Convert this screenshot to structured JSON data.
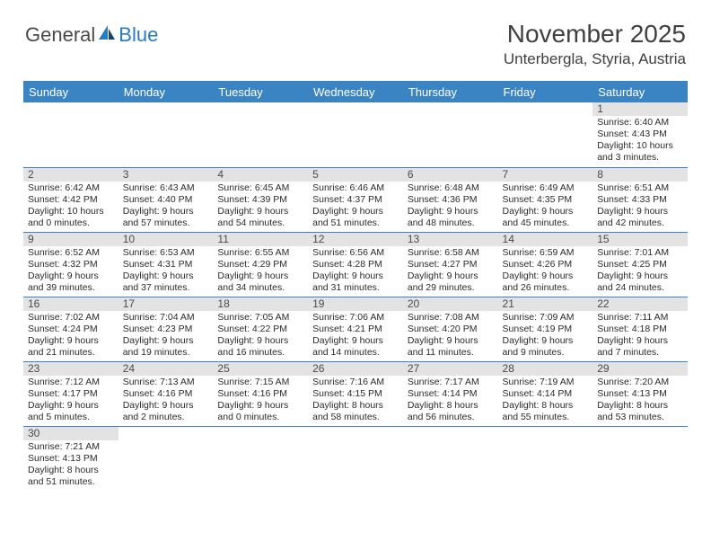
{
  "logo": {
    "part1": "General",
    "part2": "Blue"
  },
  "title": "November 2025",
  "location": "Unterbergla, Styria, Austria",
  "colors": {
    "header_bg": "#3b84c4",
    "header_text": "#ffffff",
    "daynum_bg": "#e3e3e3",
    "row_divider": "#3b84c4",
    "logo_gray": "#4a4a4a",
    "logo_blue": "#2a7abf"
  },
  "day_labels": [
    "Sunday",
    "Monday",
    "Tuesday",
    "Wednesday",
    "Thursday",
    "Friday",
    "Saturday"
  ],
  "weeks": [
    [
      null,
      null,
      null,
      null,
      null,
      null,
      {
        "n": "1",
        "sunrise": "Sunrise: 6:40 AM",
        "sunset": "Sunset: 4:43 PM",
        "day1": "Daylight: 10 hours",
        "day2": "and 3 minutes."
      }
    ],
    [
      {
        "n": "2",
        "sunrise": "Sunrise: 6:42 AM",
        "sunset": "Sunset: 4:42 PM",
        "day1": "Daylight: 10 hours",
        "day2": "and 0 minutes."
      },
      {
        "n": "3",
        "sunrise": "Sunrise: 6:43 AM",
        "sunset": "Sunset: 4:40 PM",
        "day1": "Daylight: 9 hours",
        "day2": "and 57 minutes."
      },
      {
        "n": "4",
        "sunrise": "Sunrise: 6:45 AM",
        "sunset": "Sunset: 4:39 PM",
        "day1": "Daylight: 9 hours",
        "day2": "and 54 minutes."
      },
      {
        "n": "5",
        "sunrise": "Sunrise: 6:46 AM",
        "sunset": "Sunset: 4:37 PM",
        "day1": "Daylight: 9 hours",
        "day2": "and 51 minutes."
      },
      {
        "n": "6",
        "sunrise": "Sunrise: 6:48 AM",
        "sunset": "Sunset: 4:36 PM",
        "day1": "Daylight: 9 hours",
        "day2": "and 48 minutes."
      },
      {
        "n": "7",
        "sunrise": "Sunrise: 6:49 AM",
        "sunset": "Sunset: 4:35 PM",
        "day1": "Daylight: 9 hours",
        "day2": "and 45 minutes."
      },
      {
        "n": "8",
        "sunrise": "Sunrise: 6:51 AM",
        "sunset": "Sunset: 4:33 PM",
        "day1": "Daylight: 9 hours",
        "day2": "and 42 minutes."
      }
    ],
    [
      {
        "n": "9",
        "sunrise": "Sunrise: 6:52 AM",
        "sunset": "Sunset: 4:32 PM",
        "day1": "Daylight: 9 hours",
        "day2": "and 39 minutes."
      },
      {
        "n": "10",
        "sunrise": "Sunrise: 6:53 AM",
        "sunset": "Sunset: 4:31 PM",
        "day1": "Daylight: 9 hours",
        "day2": "and 37 minutes."
      },
      {
        "n": "11",
        "sunrise": "Sunrise: 6:55 AM",
        "sunset": "Sunset: 4:29 PM",
        "day1": "Daylight: 9 hours",
        "day2": "and 34 minutes."
      },
      {
        "n": "12",
        "sunrise": "Sunrise: 6:56 AM",
        "sunset": "Sunset: 4:28 PM",
        "day1": "Daylight: 9 hours",
        "day2": "and 31 minutes."
      },
      {
        "n": "13",
        "sunrise": "Sunrise: 6:58 AM",
        "sunset": "Sunset: 4:27 PM",
        "day1": "Daylight: 9 hours",
        "day2": "and 29 minutes."
      },
      {
        "n": "14",
        "sunrise": "Sunrise: 6:59 AM",
        "sunset": "Sunset: 4:26 PM",
        "day1": "Daylight: 9 hours",
        "day2": "and 26 minutes."
      },
      {
        "n": "15",
        "sunrise": "Sunrise: 7:01 AM",
        "sunset": "Sunset: 4:25 PM",
        "day1": "Daylight: 9 hours",
        "day2": "and 24 minutes."
      }
    ],
    [
      {
        "n": "16",
        "sunrise": "Sunrise: 7:02 AM",
        "sunset": "Sunset: 4:24 PM",
        "day1": "Daylight: 9 hours",
        "day2": "and 21 minutes."
      },
      {
        "n": "17",
        "sunrise": "Sunrise: 7:04 AM",
        "sunset": "Sunset: 4:23 PM",
        "day1": "Daylight: 9 hours",
        "day2": "and 19 minutes."
      },
      {
        "n": "18",
        "sunrise": "Sunrise: 7:05 AM",
        "sunset": "Sunset: 4:22 PM",
        "day1": "Daylight: 9 hours",
        "day2": "and 16 minutes."
      },
      {
        "n": "19",
        "sunrise": "Sunrise: 7:06 AM",
        "sunset": "Sunset: 4:21 PM",
        "day1": "Daylight: 9 hours",
        "day2": "and 14 minutes."
      },
      {
        "n": "20",
        "sunrise": "Sunrise: 7:08 AM",
        "sunset": "Sunset: 4:20 PM",
        "day1": "Daylight: 9 hours",
        "day2": "and 11 minutes."
      },
      {
        "n": "21",
        "sunrise": "Sunrise: 7:09 AM",
        "sunset": "Sunset: 4:19 PM",
        "day1": "Daylight: 9 hours",
        "day2": "and 9 minutes."
      },
      {
        "n": "22",
        "sunrise": "Sunrise: 7:11 AM",
        "sunset": "Sunset: 4:18 PM",
        "day1": "Daylight: 9 hours",
        "day2": "and 7 minutes."
      }
    ],
    [
      {
        "n": "23",
        "sunrise": "Sunrise: 7:12 AM",
        "sunset": "Sunset: 4:17 PM",
        "day1": "Daylight: 9 hours",
        "day2": "and 5 minutes."
      },
      {
        "n": "24",
        "sunrise": "Sunrise: 7:13 AM",
        "sunset": "Sunset: 4:16 PM",
        "day1": "Daylight: 9 hours",
        "day2": "and 2 minutes."
      },
      {
        "n": "25",
        "sunrise": "Sunrise: 7:15 AM",
        "sunset": "Sunset: 4:16 PM",
        "day1": "Daylight: 9 hours",
        "day2": "and 0 minutes."
      },
      {
        "n": "26",
        "sunrise": "Sunrise: 7:16 AM",
        "sunset": "Sunset: 4:15 PM",
        "day1": "Daylight: 8 hours",
        "day2": "and 58 minutes."
      },
      {
        "n": "27",
        "sunrise": "Sunrise: 7:17 AM",
        "sunset": "Sunset: 4:14 PM",
        "day1": "Daylight: 8 hours",
        "day2": "and 56 minutes."
      },
      {
        "n": "28",
        "sunrise": "Sunrise: 7:19 AM",
        "sunset": "Sunset: 4:14 PM",
        "day1": "Daylight: 8 hours",
        "day2": "and 55 minutes."
      },
      {
        "n": "29",
        "sunrise": "Sunrise: 7:20 AM",
        "sunset": "Sunset: 4:13 PM",
        "day1": "Daylight: 8 hours",
        "day2": "and 53 minutes."
      }
    ],
    [
      {
        "n": "30",
        "sunrise": "Sunrise: 7:21 AM",
        "sunset": "Sunset: 4:13 PM",
        "day1": "Daylight: 8 hours",
        "day2": "and 51 minutes."
      },
      null,
      null,
      null,
      null,
      null,
      null
    ]
  ]
}
